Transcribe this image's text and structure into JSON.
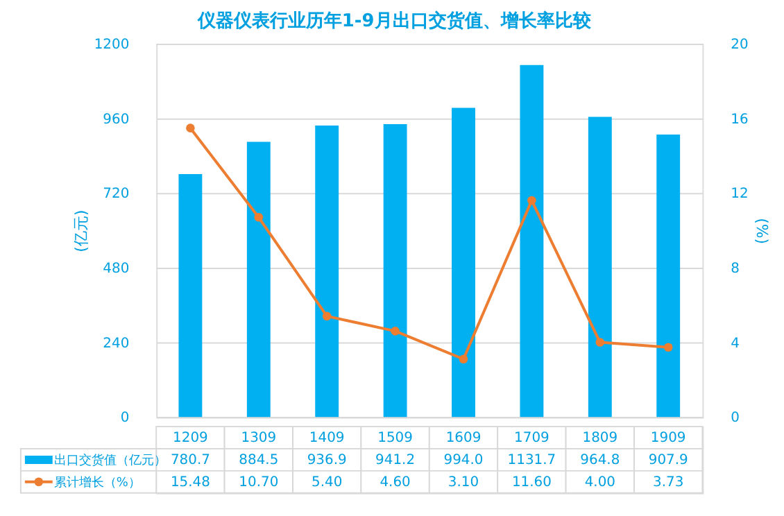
{
  "chart_data": {
    "type": "bar",
    "title": "仪器仪表行业历年1-9月出口交货值、增长率比较",
    "ylabel": "(亿元)",
    "y2label": "(%)",
    "categories": [
      "1209",
      "1309",
      "1409",
      "1509",
      "1609",
      "1709",
      "1809",
      "1909"
    ],
    "series": [
      {
        "name": "出口交货值（亿元）",
        "color": "#00b0f0",
        "values": [
          780.7,
          884.5,
          936.9,
          941.2,
          994.0,
          1131.7,
          964.8,
          907.9
        ],
        "value_labels": [
          "780.7",
          "884.5",
          "936.9",
          "941.2",
          "994.0",
          "1131.7",
          "964.8",
          "907.9"
        ]
      },
      {
        "name": "累计增长（%）",
        "type": "line",
        "axis": "y2",
        "color": "#ed7d31",
        "marker": "circle",
        "values": [
          15.48,
          10.7,
          5.4,
          4.6,
          3.1,
          11.6,
          4.0,
          3.73
        ],
        "value_labels": [
          "15.48",
          "10.70",
          "5.40",
          "4.60",
          "3.10",
          "11.60",
          "4.00",
          "3.73"
        ]
      }
    ],
    "ylim": [
      0,
      1200
    ],
    "yticks": [
      0,
      240,
      480,
      720,
      960,
      1200
    ],
    "y2lim": [
      0,
      20
    ],
    "y2ticks": [
      0,
      4,
      8,
      12,
      16,
      20
    ],
    "grid": "y",
    "legend": "bottom"
  }
}
